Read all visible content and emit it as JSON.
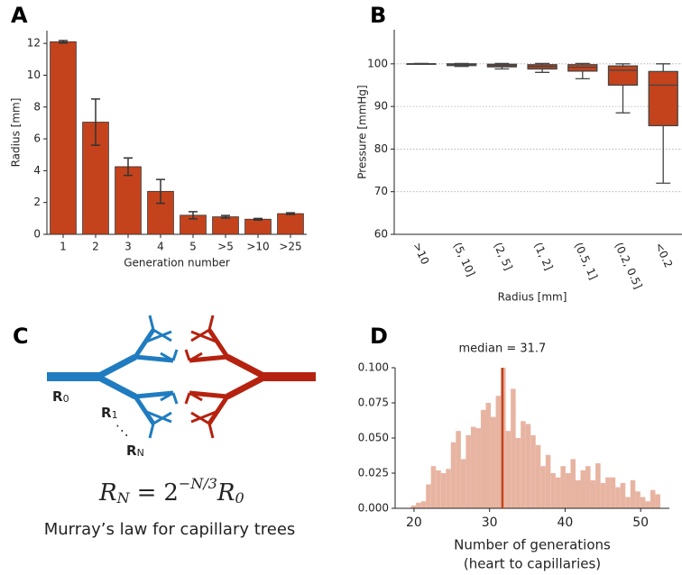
{
  "chart_data": [
    {
      "type": "bar",
      "panel": "A",
      "categories": [
        "1",
        "2",
        "3",
        "4",
        "5",
        ">5",
        ">10",
        ">25"
      ],
      "values": [
        12.1,
        7.05,
        4.25,
        2.7,
        1.2,
        1.1,
        0.95,
        1.3
      ],
      "errors": [
        0.08,
        1.45,
        0.55,
        0.75,
        0.22,
        0.08,
        0.05,
        0.05
      ],
      "color": "#c4431c",
      "xlabel": "Generation number",
      "ylabel": "Radius [mm]",
      "ylim": [
        0,
        12.8
      ],
      "yticks": [
        0,
        2,
        4,
        6,
        8,
        10,
        12
      ]
    },
    {
      "type": "box",
      "panel": "B",
      "categories": [
        ">10",
        "(5, 10]",
        "(2, 5]",
        "(1, 2]",
        "(0.5, 1]",
        "(0.2, 0.5]",
        "<0.2"
      ],
      "boxes": [
        {
          "whislo": 99.9,
          "q1": 100,
          "med": 100,
          "q3": 100,
          "whishi": 100.1
        },
        {
          "whislo": 99.4,
          "q1": 99.6,
          "med": 99.8,
          "q3": 100,
          "whishi": 100.1
        },
        {
          "whislo": 98.8,
          "q1": 99.3,
          "med": 99.6,
          "q3": 99.9,
          "whishi": 100.1
        },
        {
          "whislo": 98,
          "q1": 98.8,
          "med": 99.4,
          "q3": 99.8,
          "whishi": 100.1
        },
        {
          "whislo": 96.5,
          "q1": 98.3,
          "med": 99.2,
          "q3": 99.8,
          "whishi": 100.1
        },
        {
          "whislo": 88.5,
          "q1": 95,
          "med": 98.5,
          "q3": 99.5,
          "whishi": 100
        },
        {
          "whislo": 72,
          "q1": 85.5,
          "med": 95,
          "q3": 98.2,
          "whishi": 100
        }
      ],
      "color": "#c4431c",
      "xlabel": "Radius [mm]",
      "ylabel": "Pressure [mmHg]",
      "ylim": [
        60,
        108
      ],
      "yticks": [
        60,
        70,
        80,
        90,
        100
      ],
      "grid": true
    },
    {
      "type": "histogram",
      "panel": "D",
      "bins": [
        19.6,
        20.26,
        20.92,
        21.58,
        22.24,
        22.9,
        23.56,
        24.22,
        24.88,
        25.54,
        26.2,
        26.86,
        27.52,
        28.18,
        28.84,
        29.5,
        30.16,
        30.82,
        31.48,
        32.14,
        32.8,
        33.46,
        34.12,
        34.78,
        35.44,
        36.1,
        36.76,
        37.42,
        38.08,
        38.74,
        39.4,
        40.06,
        40.72,
        41.38,
        42.04,
        42.7,
        43.36,
        44.02,
        44.68,
        45.34,
        46.0,
        46.66,
        47.32,
        47.98,
        48.64,
        49.3,
        49.96,
        50.62,
        51.28,
        51.94,
        52.6
      ],
      "values": [
        0.002,
        0.004,
        0.005,
        0.017,
        0.03,
        0.027,
        0.025,
        0.028,
        0.047,
        0.055,
        0.035,
        0.052,
        0.058,
        0.057,
        0.07,
        0.075,
        0.065,
        0.08,
        0.1,
        0.055,
        0.085,
        0.05,
        0.062,
        0.06,
        0.052,
        0.045,
        0.03,
        0.038,
        0.025,
        0.022,
        0.03,
        0.025,
        0.035,
        0.02,
        0.027,
        0.03,
        0.02,
        0.032,
        0.018,
        0.022,
        0.022,
        0.015,
        0.018,
        0.008,
        0.02,
        0.012,
        0.008,
        0.005,
        0.013,
        0.01
      ],
      "color": "#e8b4a2",
      "median": 31.7,
      "median_color": "#c4431c",
      "annotation": "median = 31.7",
      "xlabel": "Number of generations",
      "xlabel2": "(heart to capillaries)",
      "xlim": [
        17.5,
        53.8
      ],
      "ylim": [
        0,
        0.1
      ],
      "xticks": [
        20,
        30,
        40,
        50
      ],
      "yticks": [
        {
          "value": 0,
          "label": "0.000"
        },
        {
          "value": 0.025,
          "label": "0.025"
        },
        {
          "value": 0.05,
          "label": "0.050"
        },
        {
          "value": 0.075,
          "label": "0.075"
        },
        {
          "value": 0.1,
          "label": "0.100"
        }
      ]
    }
  ],
  "diagram": {
    "panel": "C",
    "labels": [
      {
        "text": "R",
        "sub": "0"
      },
      {
        "text": "R",
        "sub": "1"
      },
      {
        "text": "R",
        "sub": "N"
      }
    ],
    "ellipsis": "⋱",
    "equation": {
      "lhs": "R",
      "lhs_sub": "N",
      "eq": "=",
      "base": "2",
      "exp": "−N/3",
      "rhs": "R",
      "rhs_sub": "0"
    },
    "caption": "Murray’s law for capillary trees"
  }
}
